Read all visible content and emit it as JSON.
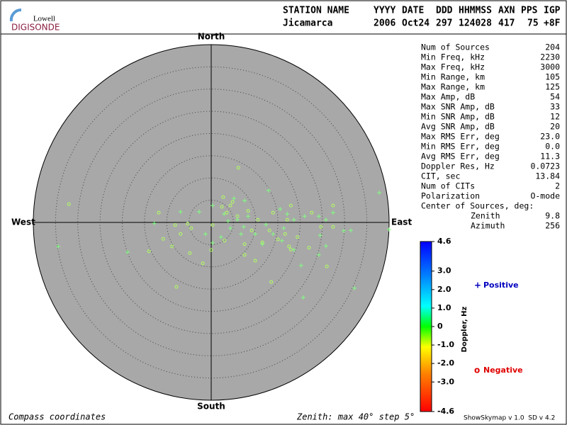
{
  "logo": {
    "top": "Lowell",
    "bottom": "DIGISONDE"
  },
  "header": {
    "columns": [
      "STATION NAME",
      "YYYY",
      "DATE",
      "DDD",
      "HHMMSS",
      "AXN",
      "PPS",
      "IGP"
    ],
    "values": [
      "Jicamarca",
      "2006",
      "Oct24",
      "297",
      "124028",
      "417",
      "75",
      "+8F"
    ]
  },
  "stats": [
    [
      "Num of Sources",
      "204"
    ],
    [
      "Min Freq, kHz",
      "2230"
    ],
    [
      "Max Freq, kHz",
      "3000"
    ],
    [
      "Min Range, km",
      "105"
    ],
    [
      "Max Range, km",
      "125"
    ],
    [
      "Max Amp, dB",
      "54"
    ],
    [
      "Max SNR Amp, dB",
      "33"
    ],
    [
      "Min SNR Amp, dB",
      "12"
    ],
    [
      "Avg SNR Amp, dB",
      "20"
    ],
    [
      "Max RMS Err, deg",
      "23.0"
    ],
    [
      "Min RMS Err, deg",
      "0.0"
    ],
    [
      "Avg RMS Err, deg",
      "11.3"
    ],
    [
      "Doppler Res, Hz",
      "0.0723"
    ],
    [
      "CIT, sec",
      "13.84"
    ],
    [
      "Num of CITs",
      "2"
    ],
    [
      "Polarization",
      "O-mode"
    ],
    [
      "Center of Sources, deg:",
      ""
    ],
    [
      "Zenith",
      "9.8"
    ],
    [
      "Azimuth",
      "256"
    ]
  ],
  "chart_data": {
    "type": "polar_scatter",
    "directions": {
      "north": "North",
      "east": "East",
      "south": "South",
      "west": "West"
    },
    "xlim": [
      -40,
      40
    ],
    "ylim": [
      -40,
      40
    ],
    "rticks": [
      5,
      10,
      15,
      20,
      25,
      30,
      35
    ],
    "background": "#a8a8a8",
    "footer_left": "Compass coordinates",
    "footer_scale": "Zenith: max 40°  step 5°",
    "series": [
      {
        "name": "Positive",
        "marker": "+",
        "color": "#0000c0",
        "point_color": "#80ff80",
        "x": [
          37.8,
          12.9,
          -6.9,
          -2.7,
          -12.8,
          -18.8,
          -34.4,
          2.2,
          7.3,
          12.3,
          13.9,
          16.3,
          18.6,
          21.0,
          24.2,
          25.8,
          27.4,
          29.8,
          31.4,
          32.2,
          20.2,
          20.7,
          25.8,
          24.2,
          18.6,
          15.9,
          11.5,
          9.9,
          6.7,
          4.3,
          2.9,
          0.3,
          -1.3,
          5.1,
          7.5,
          15.5,
          17.1,
          8.3,
          5.9,
          3.8,
          40.0,
          24.5,
          0.3
        ],
        "y": [
          6.7,
          7.2,
          2.4,
          2.4,
          -0.2,
          -6.7,
          -5.4,
          -3.3,
          -1.0,
          -0.5,
          -2.6,
          -1.3,
          0.6,
          1.4,
          1.4,
          0.6,
          2.2,
          -1.9,
          -1.8,
          -14.8,
          -9.7,
          -16.9,
          -5.3,
          -7.3,
          -6.2,
          -4.1,
          -4.9,
          -2.6,
          -2.6,
          -1.3,
          1.9,
          3.8,
          -2.6,
          5.4,
          4.9,
          3.0,
          1.9,
          1.4,
          0.6,
          0.3,
          -1.6,
          -2.9,
          -4.6
        ]
      },
      {
        "name": "Negative",
        "marker": "o",
        "color": "#e00000",
        "point_color": "#b0ff60",
        "x": [
          -32.0,
          6.1,
          -7.8,
          -11.8,
          -8.1,
          -5.3,
          -4.5,
          0,
          -1.9,
          -4.8,
          -10.8,
          -14.0,
          -8.8,
          2.4,
          4.3,
          2.7,
          3.5,
          4.8,
          5.9,
          8.3,
          9.1,
          7.5,
          11.5,
          9.9,
          13.5,
          17.9,
          19.4,
          22.0,
          26.0,
          24.7,
          27.4,
          27.4,
          22.6,
          17.9,
          13.9,
          13.1,
          10.5,
          15.0,
          16.6,
          17.5,
          3.0,
          0.3,
          -6.9,
          17.1,
          7.5
        ],
        "y": [
          4.1,
          12.3,
          -14.5,
          2.2,
          -0.6,
          -0.3,
          -1.3,
          -6.2,
          -9.2,
          -6.9,
          -3.7,
          -6.5,
          -5.4,
          3.5,
          3.8,
          5.7,
          2.2,
          4.6,
          1.4,
          2.6,
          -1.8,
          -4.9,
          -4.5,
          -8.6,
          -13.4,
          -6.1,
          -3.3,
          -5.7,
          -9.9,
          -1.0,
          -1.0,
          3.8,
          2.2,
          3.8,
          2.2,
          -1.8,
          0.6,
          -3.8,
          -2.6,
          -5.4,
          -4.1,
          -0.6,
          -2.6,
          0.6,
          -7.3
        ]
      }
    ],
    "colorbar": {
      "label": "Doppler, Hz",
      "ylim": [
        -4.6,
        4.6
      ],
      "yticks": [
        4.6,
        {
          "value": 3,
          "label": "3.0"
        },
        {
          "value": 2,
          "label": "2.0"
        },
        {
          "value": 1,
          "label": "1.0"
        },
        0,
        {
          "value": -1,
          "label": "-1.0"
        },
        {
          "value": -2,
          "label": "-2.0"
        },
        {
          "value": -3,
          "label": "-3.0"
        },
        -4.6
      ]
    }
  },
  "version": "ShowSkymap v 1.0  SD v 4.2"
}
